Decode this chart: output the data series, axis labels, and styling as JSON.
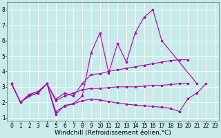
{
  "background_color": "#c8eaea",
  "grid_color": "#ffffff",
  "line_color": "#aa00aa",
  "xlabel": "Windchill (Refroidissement éolien,°C)",
  "xlabel_fontsize": 6.5,
  "xlim": [
    -0.5,
    23.5
  ],
  "ylim": [
    0.8,
    8.5
  ],
  "yticks": [
    1,
    2,
    3,
    4,
    5,
    6,
    7,
    8
  ],
  "xticks": [
    0,
    1,
    2,
    3,
    4,
    5,
    6,
    7,
    8,
    9,
    10,
    11,
    12,
    13,
    14,
    15,
    16,
    17,
    18,
    19,
    20,
    21,
    22,
    23
  ],
  "tick_fontsize": 5.5,
  "line1_y": [
    3.2,
    2.0,
    2.4,
    2.6,
    3.2,
    1.2,
    1.8,
    1.9,
    2.4,
    5.2,
    6.5,
    3.9,
    5.8,
    4.6,
    6.5,
    7.5,
    8.0,
    6.0,
    null,
    null,
    null,
    3.2,
    null,
    null
  ],
  "line2_y": [
    3.2,
    2.0,
    2.5,
    2.7,
    3.2,
    2.2,
    2.6,
    2.4,
    3.2,
    3.8,
    3.85,
    4.0,
    4.1,
    4.2,
    4.3,
    4.4,
    4.5,
    4.6,
    4.7,
    4.75,
    4.75,
    null,
    null,
    null
  ],
  "line3_y": [
    3.2,
    2.0,
    2.5,
    2.7,
    3.2,
    2.1,
    2.4,
    2.6,
    2.8,
    2.9,
    2.9,
    2.95,
    3.0,
    3.0,
    3.0,
    3.05,
    3.1,
    3.1,
    3.15,
    3.2,
    3.2,
    null,
    null,
    null
  ],
  "line4_y": [
    3.2,
    2.0,
    2.4,
    2.6,
    3.2,
    1.4,
    1.75,
    1.9,
    2.1,
    2.2,
    2.15,
    2.05,
    1.95,
    1.88,
    1.82,
    1.78,
    1.72,
    1.68,
    1.6,
    1.4,
    2.25,
    2.6,
    3.2,
    null
  ]
}
